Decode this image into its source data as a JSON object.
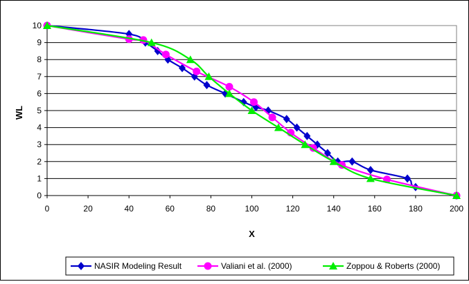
{
  "chart_data": {
    "type": "line",
    "title": "",
    "xlabel": "X",
    "ylabel": "WL",
    "xlim": [
      0,
      200
    ],
    "ylim": [
      0,
      10
    ],
    "xticks": [
      0,
      20,
      40,
      60,
      80,
      100,
      120,
      140,
      160,
      180,
      200
    ],
    "yticks": [
      0,
      1,
      2,
      3,
      4,
      5,
      6,
      7,
      8,
      9,
      10
    ],
    "grid": "horizontal",
    "legend_position": "bottom",
    "series": [
      {
        "name": "NASIR Modeling Result",
        "color": "#0000cc",
        "marker": "diamond",
        "x": [
          0,
          40,
          48,
          54,
          59,
          66,
          72,
          78,
          87,
          96,
          102,
          108,
          117,
          122,
          127,
          132,
          137,
          142,
          149,
          158,
          176,
          180,
          200
        ],
        "y": [
          10,
          9.5,
          9,
          8.5,
          8,
          7.5,
          7,
          6.5,
          6,
          5.5,
          5.2,
          5,
          4.5,
          4,
          3.5,
          3,
          2.5,
          2,
          2,
          1.5,
          1,
          0.5,
          0
        ]
      },
      {
        "name": "Valiani et al. (2000)",
        "color": "#ff00ff",
        "marker": "circle",
        "x": [
          0,
          40,
          47,
          58,
          73,
          89,
          101,
          110,
          119,
          130,
          144,
          166,
          200
        ],
        "y": [
          10,
          9.2,
          9.15,
          8.3,
          7.3,
          6.4,
          5.5,
          4.6,
          3.7,
          2.8,
          1.8,
          0.95,
          0
        ]
      },
      {
        "name": "Zoppou & Roberts (2000)",
        "color": "#00ee00",
        "marker": "triangle",
        "x": [
          0,
          51,
          70,
          79,
          89,
          100,
          113,
          126,
          140,
          158,
          200
        ],
        "y": [
          10,
          9,
          8,
          7,
          6,
          5,
          4,
          3,
          2,
          1,
          0
        ]
      }
    ]
  }
}
